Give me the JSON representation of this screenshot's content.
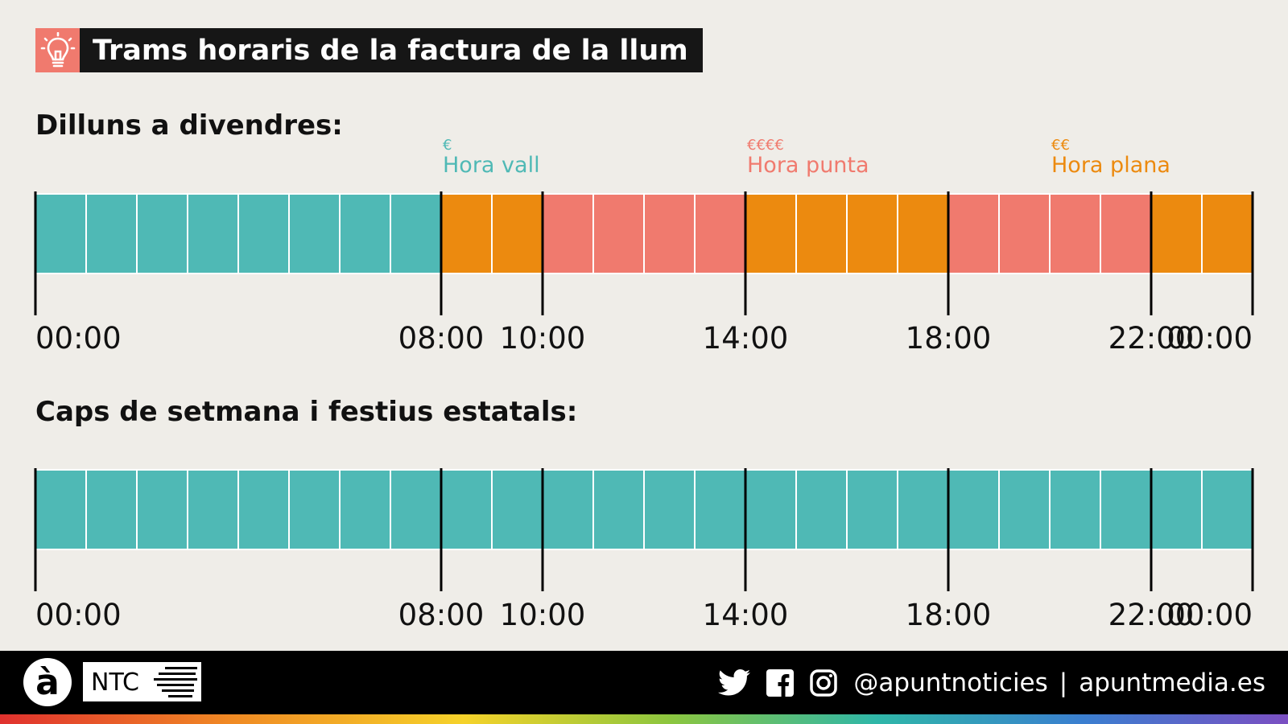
{
  "title": "Trams horaris de la factura de la llum",
  "colors": {
    "vall": "#4fb9b5",
    "punta": "#f07a6e",
    "plana": "#ec8a0f",
    "title_bg": "#161616",
    "icon_bg": "#f07a6e",
    "background": "#efede8"
  },
  "chart_data": [
    {
      "type": "bar",
      "title": "Dilluns a divendres:",
      "legend": [
        {
          "symbol": "€",
          "label": "Hora vall",
          "key": "vall",
          "at_hour": 8
        },
        {
          "symbol": "€€€€",
          "label": "Hora punta",
          "key": "punta",
          "at_hour": 14
        },
        {
          "symbol": "€€",
          "label": "Hora plana",
          "key": "plana",
          "at_hour": 20
        }
      ],
      "hours": 24,
      "hour_categories": [
        "vall",
        "vall",
        "vall",
        "vall",
        "vall",
        "vall",
        "vall",
        "vall",
        "plana",
        "plana",
        "punta",
        "punta",
        "punta",
        "punta",
        "plana",
        "plana",
        "plana",
        "plana",
        "punta",
        "punta",
        "punta",
        "punta",
        "plana",
        "plana"
      ],
      "tick_hours": [
        0,
        8,
        10,
        14,
        18,
        22,
        24
      ],
      "tick_labels": [
        "00:00",
        "08:00",
        "10:00",
        "14:00",
        "18:00",
        "22:00",
        "00:00"
      ]
    },
    {
      "type": "bar",
      "title": "Caps de setmana i festius estatals:",
      "hours": 24,
      "hour_categories": [
        "vall",
        "vall",
        "vall",
        "vall",
        "vall",
        "vall",
        "vall",
        "vall",
        "vall",
        "vall",
        "vall",
        "vall",
        "vall",
        "vall",
        "vall",
        "vall",
        "vall",
        "vall",
        "vall",
        "vall",
        "vall",
        "vall",
        "vall",
        "vall"
      ],
      "tick_hours": [
        0,
        8,
        10,
        14,
        18,
        22,
        24
      ],
      "tick_labels": [
        "00:00",
        "08:00",
        "10:00",
        "14:00",
        "18:00",
        "22:00",
        "00:00"
      ]
    }
  ],
  "footer": {
    "logo_letter": "à",
    "ntc_label": "NTC",
    "twitter_icon": "twitter-icon",
    "facebook_icon": "facebook-icon",
    "instagram_icon": "instagram-icon",
    "handle": "@apuntnoticies",
    "separator": "|",
    "website": "apuntmedia.es"
  }
}
